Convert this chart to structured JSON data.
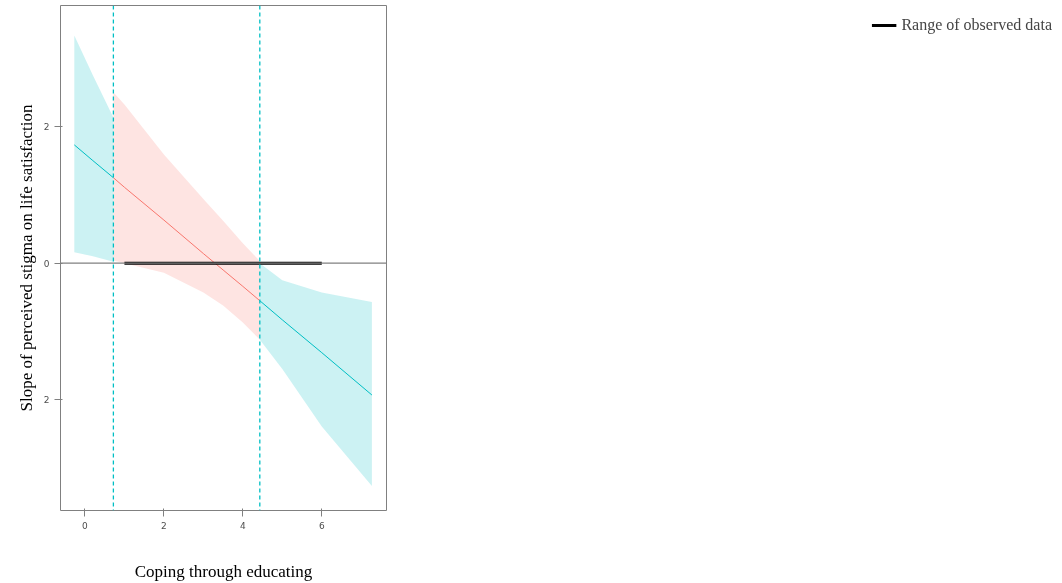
{
  "chart_data": {
    "type": "line",
    "xlabel": "Coping through educating",
    "ylabel": "Slope of perceived stigma on life satisfaction",
    "xlim": [
      -0.62,
      7.64
    ],
    "ylim": [
      -3.62,
      3.77
    ],
    "xticks": [
      0,
      2,
      4,
      6
    ],
    "yticks": [
      {
        "value": -2,
        "label": "2"
      },
      0,
      2
    ],
    "grid": false,
    "legend": "right",
    "line_style": "solid",
    "marker": "none",
    "series": [
      {
        "color": "#00bfc4",
        "x": [
          -0.27,
          0.2,
          0.72
        ],
        "values": [
          1.73,
          1.5,
          1.25
        ],
        "upper": [
          3.33,
          2.75,
          2.13
        ],
        "lower": [
          0.16,
          0.1,
          0.02
        ]
      },
      {
        "color": "#f8766d",
        "x": [
          0.72,
          1,
          2,
          3,
          3.5,
          4,
          4.43
        ],
        "values": [
          1.25,
          1.11,
          0.63,
          0.14,
          -0.1,
          -0.34,
          -0.55
        ],
        "upper": [
          2.5,
          2.32,
          1.59,
          0.94,
          0.62,
          0.29,
          0.03
        ],
        "lower": [
          0.04,
          0.0,
          -0.14,
          -0.43,
          -0.62,
          -0.87,
          -1.12
        ]
      },
      {
        "color": "#00bfc4",
        "x": [
          4.43,
          5,
          6,
          7.27
        ],
        "values": [
          -0.55,
          -0.83,
          -1.31,
          -1.93
        ],
        "upper": [
          0.0,
          -0.25,
          -0.43,
          -0.57
        ],
        "lower": [
          -1.12,
          -1.55,
          -2.39,
          -3.26
        ]
      },
      {
        "name": "Range of observed data",
        "color": "#000000",
        "x": [
          1,
          6
        ],
        "values": [
          0,
          0
        ]
      }
    ],
    "ref_lines": [
      {
        "axis": "x",
        "value": 0.72,
        "color": "#00bfc4",
        "line_style": "dashed"
      },
      {
        "axis": "x",
        "value": 4.43,
        "color": "#00bfc4",
        "line_style": "dashed"
      },
      {
        "axis": "y",
        "value": 0,
        "color": "#808080",
        "line_style": "solid"
      }
    ]
  }
}
